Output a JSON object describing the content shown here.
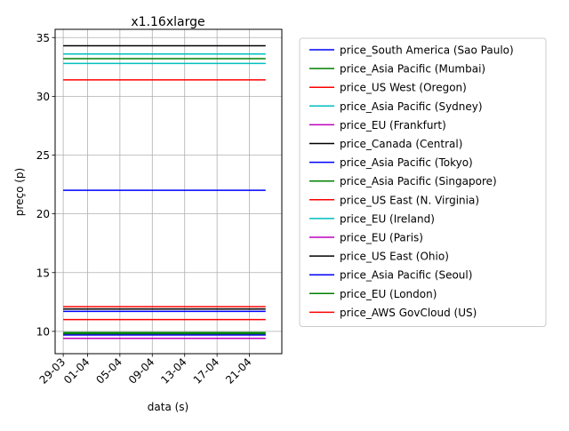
{
  "chart_data": {
    "type": "line",
    "title": "x1.16xlarge",
    "xlabel": "data (s)",
    "ylabel": "preço (p)",
    "x_range": [
      "2017-03-29",
      "2017-04-23"
    ],
    "xlim": [
      "2017-03-28",
      "2017-04-25"
    ],
    "ylim": [
      8.1,
      35.7
    ],
    "x_ticks": [
      {
        "date": "2017-03-29",
        "label": "29-03"
      },
      {
        "date": "2017-04-01",
        "label": "01-04"
      },
      {
        "date": "2017-04-05",
        "label": "05-04"
      },
      {
        "date": "2017-04-09",
        "label": "09-04"
      },
      {
        "date": "2017-04-13",
        "label": "13-04"
      },
      {
        "date": "2017-04-17",
        "label": "17-04"
      },
      {
        "date": "2017-04-21",
        "label": "21-04"
      }
    ],
    "y_ticks": [
      10,
      15,
      20,
      25,
      30,
      35
    ],
    "grid": true,
    "legend_position": "outside-right",
    "series": [
      {
        "name": "price_South America (Sao Paulo)",
        "color": "#0000ff",
        "value": 22.0
      },
      {
        "name": "price_Asia Pacific (Mumbai)",
        "color": "#008000",
        "value": 33.2
      },
      {
        "name": "price_US West (Oregon)",
        "color": "#ff0000",
        "value": 11.0
      },
      {
        "name": "price_Asia Pacific (Sydney)",
        "color": "#00bfbf",
        "value": 32.8
      },
      {
        "name": "price_EU (Frankfurt)",
        "color": "#bf00bf",
        "value": 9.4
      },
      {
        "name": "price_Canada (Central)",
        "color": "#000000",
        "value": 34.3
      },
      {
        "name": "price_Asia Pacific (Tokyo)",
        "color": "#0000ff",
        "value": 11.7
      },
      {
        "name": "price_Asia Pacific (Singapore)",
        "color": "#008000",
        "value": 9.9
      },
      {
        "name": "price_US East (N. Virginia)",
        "color": "#ff0000",
        "value": 12.1
      },
      {
        "name": "price_EU (Ireland)",
        "color": "#00bfbf",
        "value": 33.6
      },
      {
        "name": "price_EU (Paris)",
        "color": "#bf00bf",
        "value": 9.7
      },
      {
        "name": "price_US East (Ohio)",
        "color": "#000000",
        "value": 11.9
      },
      {
        "name": "price_Asia Pacific (Seoul)",
        "color": "#0000ff",
        "value": 9.7
      },
      {
        "name": "price_EU (London)",
        "color": "#008000",
        "value": 9.8
      },
      {
        "name": "price_AWS GovCloud (US)",
        "color": "#ff0000",
        "value": 31.4
      }
    ]
  }
}
